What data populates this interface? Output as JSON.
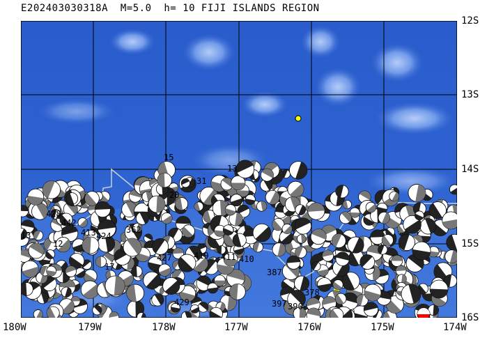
{
  "title": "E202403030318A  M=5.0  h= 10 FIJI ISLANDS REGION",
  "lat_labels": [
    "12S",
    "13S",
    "14S",
    "15S",
    "16S"
  ],
  "lon_labels": [
    "180W",
    "179W",
    "178W",
    "177W",
    "176W",
    "175W",
    "174W"
  ],
  "colors": {
    "ocean_deep": "#1c4fc4",
    "ocean_shallow": "#5b8be6",
    "grid": "#000000",
    "boundary": "#c8d0dc",
    "mechanism_compression": "#ffffff",
    "mechanism_tension": "#777777",
    "epicenter_marker": "#ffff00",
    "highlight_mechanism": "#ff0000"
  },
  "map": {
    "projection_labels_text_on_beachballs": [
      "15",
      "13",
      "31",
      "20",
      "428",
      "442",
      "413",
      "424",
      "362",
      "12",
      "17",
      "387",
      "378",
      "397",
      "390",
      "419",
      "429",
      "427",
      "411",
      "410",
      "13"
    ],
    "event_type_icon": "epicenter-star-icon"
  }
}
